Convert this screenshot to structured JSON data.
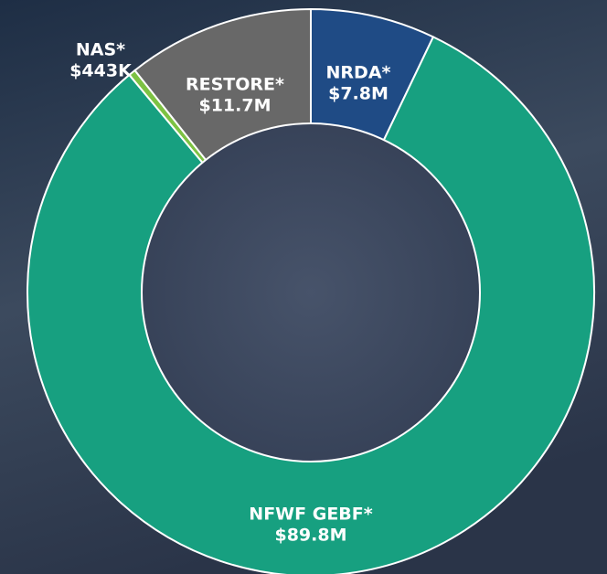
{
  "chart_data": {
    "type": "donut",
    "categories": [
      "NRDA*",
      "NFWF GEBF*",
      "NAS*",
      "RESTORE*"
    ],
    "values": [
      7800000,
      89800000,
      443000,
      11700000
    ],
    "value_labels": [
      "$7.8M",
      "$89.8M",
      "$443K",
      "$11.7M"
    ],
    "colors": [
      "#1f4b85",
      "#17a080",
      "#7dc243",
      "#686868"
    ]
  }
}
